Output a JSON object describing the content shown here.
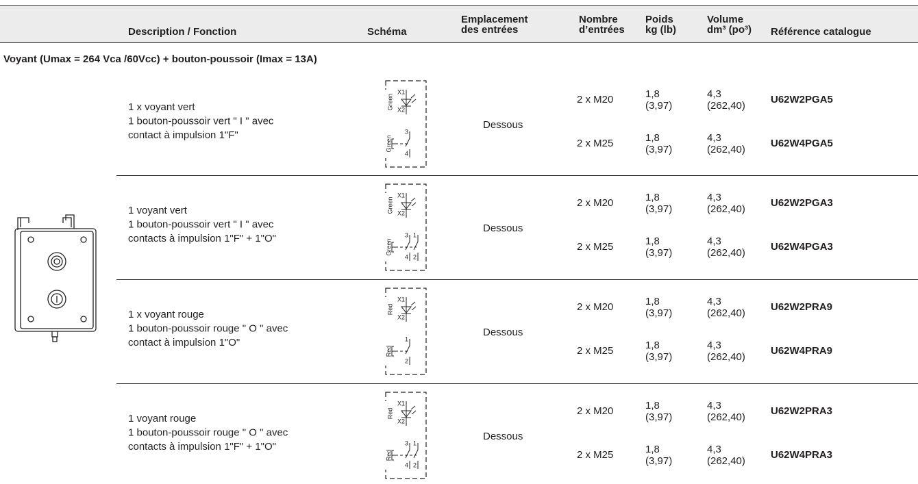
{
  "header": {
    "columns": [
      [
        "Description / Fonction"
      ],
      [
        "Schéma"
      ],
      [
        "Emplacement",
        "des entrées"
      ],
      [
        "Nombre",
        "d’entrées"
      ],
      [
        "Poids",
        "kg (lb)"
      ],
      [
        "Volume",
        "dm³ (po³)"
      ],
      [
        "Référence catalogue"
      ]
    ]
  },
  "section_title": "Voyant (Umax = 264 Vca /60Vcc) + bouton-poussoir (Imax = 13A)",
  "groups": [
    {
      "description": [
        "1 x voyant vert",
        "1 bouton-poussoir vert \" I \" avec",
        "contact à impulsion 1\"F\""
      ],
      "schema": {
        "lamp_color": "Green",
        "lamp_terminals": [
          "X1",
          "X2"
        ],
        "contact_color": "Green",
        "contacts": [
          [
            "3",
            "4"
          ]
        ]
      },
      "location": "Dessous",
      "rows": [
        {
          "entries": "2 x M20",
          "weight": [
            "1,8",
            "(3,97)"
          ],
          "volume": [
            "4,3",
            "(262,40)"
          ],
          "reference": "U62W2PGA5"
        },
        {
          "entries": "2 x M25",
          "weight": [
            "1,8",
            "(3,97)"
          ],
          "volume": [
            "4,3",
            "(262,40)"
          ],
          "reference": "U62W4PGA5"
        }
      ]
    },
    {
      "description": [
        "1 voyant vert",
        "1 bouton-poussoir vert \" I \" avec",
        "contacts à impulsion 1\"F\" + 1\"O\""
      ],
      "schema": {
        "lamp_color": "Green",
        "lamp_terminals": [
          "X1",
          "X2"
        ],
        "contact_color": "Green",
        "contacts": [
          [
            "3",
            "4"
          ],
          [
            "1",
            "2"
          ]
        ]
      },
      "location": "Dessous",
      "rows": [
        {
          "entries": "2 x M20",
          "weight": [
            "1,8",
            "(3,97)"
          ],
          "volume": [
            "4,3",
            "(262,40)"
          ],
          "reference": "U62W2PGA3"
        },
        {
          "entries": "2 x M25",
          "weight": [
            "1,8",
            "(3,97)"
          ],
          "volume": [
            "4,3",
            "(262,40)"
          ],
          "reference": "U62W4PGA3"
        }
      ]
    },
    {
      "description": [
        "1 x voyant rouge",
        "1 bouton-poussoir rouge \" O \" avec",
        "contact à impulsion 1\"O\""
      ],
      "schema": {
        "lamp_color": "Red",
        "lamp_terminals": [
          "X1",
          "X2"
        ],
        "contact_color": "Red",
        "contacts": [
          [
            "1",
            "2"
          ]
        ]
      },
      "location": "Dessous",
      "rows": [
        {
          "entries": "2 x M20",
          "weight": [
            "1,8",
            "(3,97)"
          ],
          "volume": [
            "4,3",
            "(262,40)"
          ],
          "reference": "U62W2PRA9"
        },
        {
          "entries": "2 x M25",
          "weight": [
            "1,8",
            "(3,97)"
          ],
          "volume": [
            "4,3",
            "(262,40)"
          ],
          "reference": "U62W4PRA9"
        }
      ]
    },
    {
      "description": [
        "1 voyant rouge",
        "1 bouton-poussoir rouge \" O \" avec",
        "contacts à impulsion 1\"F\" + 1\"O\""
      ],
      "schema": {
        "lamp_color": "Red",
        "lamp_terminals": [
          "X1",
          "X2"
        ],
        "contact_color": "Red",
        "contacts": [
          [
            "3",
            "4"
          ],
          [
            "1",
            "2"
          ]
        ]
      },
      "location": "Dessous",
      "rows": [
        {
          "entries": "2 x M20",
          "weight": [
            "1,8",
            "(3,97)"
          ],
          "volume": [
            "4,3",
            "(262,40)"
          ],
          "reference": "U62W2PRA3"
        },
        {
          "entries": "2 x M25",
          "weight": [
            "1,8",
            "(3,97)"
          ],
          "volume": [
            "4,3",
            "(262,40)"
          ],
          "reference": "U62W4PRA3"
        }
      ]
    }
  ]
}
